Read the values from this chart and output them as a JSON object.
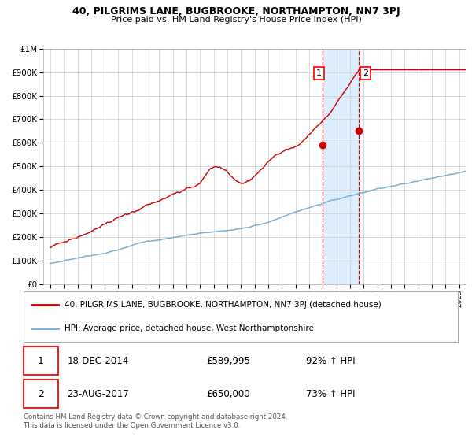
{
  "title": "40, PILGRIMS LANE, BUGBROOKE, NORTHAMPTON, NN7 3PJ",
  "subtitle": "Price paid vs. HM Land Registry's House Price Index (HPI)",
  "legend_line1": "40, PILGRIMS LANE, BUGBROOKE, NORTHAMPTON, NN7 3PJ (detached house)",
  "legend_line2": "HPI: Average price, detached house, West Northamptonshire",
  "table": [
    {
      "num": "1",
      "date": "18-DEC-2014",
      "price": "£589,995",
      "hpi": "92% ↑ HPI"
    },
    {
      "num": "2",
      "date": "23-AUG-2017",
      "price": "£650,000",
      "hpi": "73% ↑ HPI"
    }
  ],
  "footnote": "Contains HM Land Registry data © Crown copyright and database right 2024.\nThis data is licensed under the Open Government Licence v3.0.",
  "sale1_x": 2014.96,
  "sale1_y": 589995,
  "sale2_x": 2017.64,
  "sale2_y": 650000,
  "red_color": "#cc0000",
  "blue_color": "#7bafd4",
  "shade_color": "#ddeeff",
  "background_color": "#ffffff",
  "grid_color": "#cccccc",
  "ylim": [
    0,
    1000000
  ],
  "xlim_start": 1994.5,
  "xlim_end": 2025.5,
  "title_fontsize": 9,
  "subtitle_fontsize": 8
}
